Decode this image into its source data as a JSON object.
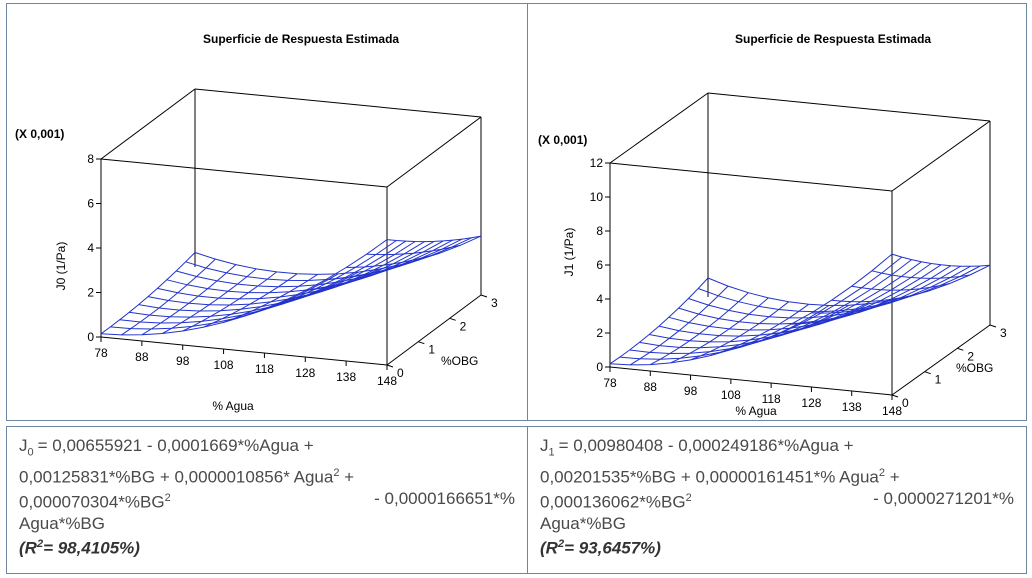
{
  "chart_data": [
    {
      "type": "surface3d",
      "title": "Superficie de Respuesta Estimada",
      "multiplier": "(X 0,001)",
      "xlabel": "% Agua",
      "ylabel": "%OBG",
      "zlabel": "J0 (1/Pa)",
      "x_ticks": [
        "78",
        "88",
        "98",
        "108",
        "118",
        "128",
        "138",
        "148"
      ],
      "y_ticks": [
        "0",
        "1",
        "2",
        "3"
      ],
      "z_ticks": [
        "0",
        "2",
        "4",
        "6",
        "8"
      ],
      "xlim": [
        78,
        148
      ],
      "ylim": [
        0,
        3
      ],
      "zlim": [
        0,
        8
      ],
      "coef": {
        "c0": 0.00655921,
        "c_agua": -0.0001669,
        "c_bg": 0.00125831,
        "c_agua2": 1.0856e-06,
        "c_bg2": 7.0304e-05,
        "c_aguabg": -1.66651e-05
      },
      "surface_color": "#2233cc"
    },
    {
      "type": "surface3d",
      "title": "Superficie de Respuesta Estimada",
      "multiplier": "(X 0,001)",
      "xlabel": "% Agua",
      "ylabel": "%OBG",
      "zlabel": "J1 (1/Pa)",
      "x_ticks": [
        "78",
        "88",
        "98",
        "108",
        "118",
        "128",
        "138",
        "148"
      ],
      "y_ticks": [
        "0",
        "1",
        "2",
        "3"
      ],
      "z_ticks": [
        "0",
        "2",
        "4",
        "6",
        "8",
        "10",
        "12"
      ],
      "xlim": [
        78,
        148
      ],
      "ylim": [
        0,
        3
      ],
      "zlim": [
        0,
        12
      ],
      "coef": {
        "c0": 0.00980408,
        "c_agua": -0.000249186,
        "c_bg": 0.00201535,
        "c_agua2": 1.61451e-06,
        "c_bg2": 0.000136062,
        "c_aguabg": -2.71201e-05
      },
      "surface_color": "#2233cc"
    }
  ],
  "equations": {
    "left": {
      "lhs": "J",
      "lhs_sub": "0",
      "l1": [
        "= 0,00655921 - 0,0001669*%Agua +"
      ],
      "l2a": "0,00125831*%BG + 0,0000010856* Agua",
      "l2b": " +",
      "l3a": "0,000070304*%BG",
      "l3b": "- 0,0000166651*%",
      "l4": "Agua*%BG",
      "r2_pre": "(R",
      "r2_post": "= 98,4105%)",
      "sup2": "2"
    },
    "right": {
      "lhs": "J",
      "lhs_sub": "1",
      "l1": [
        "= 0,00980408 - 0,000249186*%Agua +"
      ],
      "l2a": "0,00201535*%BG + 0,00000161451*% Agua",
      "l2b": " +",
      "l3a": "0,000136062*%BG",
      "l3b": "- 0,0000271201*%",
      "l4": "Agua*%BG",
      "r2_pre": "(R",
      "r2_post": "= 93,6457%)",
      "sup2": "2"
    }
  }
}
